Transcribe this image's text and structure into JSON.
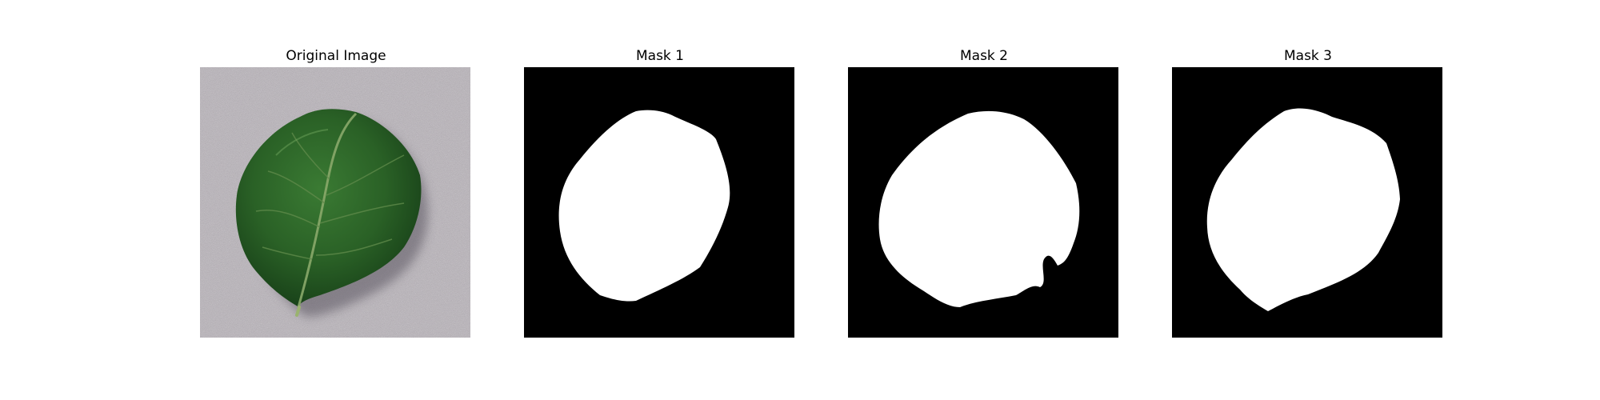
{
  "figure": {
    "panels": [
      {
        "title": "Original Image",
        "content": "photo of a green leaf on a grey textured surface"
      },
      {
        "title": "Mask 1",
        "content": "binary segmentation mask"
      },
      {
        "title": "Mask 2",
        "content": "binary segmentation mask"
      },
      {
        "title": "Mask 3",
        "content": "binary segmentation mask"
      }
    ]
  },
  "colors": {
    "background": "#ffffff",
    "mask_background": "#000000",
    "mask_foreground": "#ffffff",
    "leaf_dark": "#1f4d20",
    "leaf_mid": "#2f6b2c",
    "leaf_vein": "#8aa86a",
    "surface": "#b9b3ba"
  }
}
